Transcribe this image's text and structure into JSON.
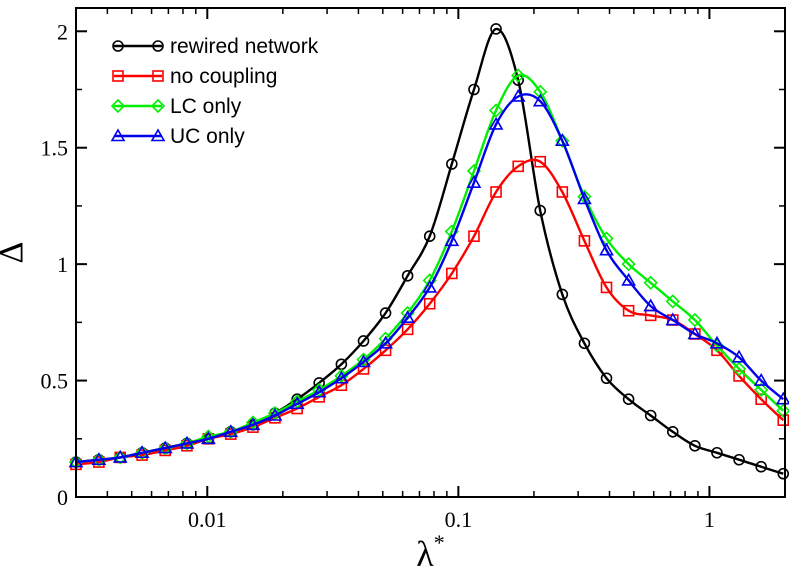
{
  "chart_data": {
    "type": "line",
    "title": "",
    "xlabel": "λ",
    "xlabel_superscript": "*",
    "ylabel": "Δ",
    "xscale": "log",
    "xlim": [
      0.003,
      2.0
    ],
    "ylim": [
      0,
      2.1
    ],
    "xticks": [
      {
        "value": 0.01,
        "label": "0.01"
      },
      {
        "value": 0.1,
        "label": "0.1"
      },
      {
        "value": 1,
        "label": "1"
      }
    ],
    "yticks": [
      {
        "value": 0,
        "label": "0"
      },
      {
        "value": 0.5,
        "label": "0.5"
      },
      {
        "value": 1,
        "label": "1"
      },
      {
        "value": 1.5,
        "label": "1.5"
      },
      {
        "value": 2,
        "label": "2"
      }
    ],
    "grid": false,
    "legend_position": "top-left",
    "series": [
      {
        "name": "rewired network",
        "color": "#000000",
        "marker": "circle",
        "x": [
          0.003,
          0.0037,
          0.0045,
          0.0055,
          0.0068,
          0.0083,
          0.0101,
          0.0124,
          0.0152,
          0.0186,
          0.0228,
          0.0279,
          0.0342,
          0.0419,
          0.0513,
          0.0628,
          0.0769,
          0.0942,
          0.1154,
          0.1413,
          0.1731,
          0.2119,
          0.2595,
          0.3178,
          0.3892,
          0.4766,
          0.5836,
          0.7147,
          0.8752,
          1.0718,
          1.3125,
          1.6072,
          1.9682
        ],
        "values": [
          0.15,
          0.16,
          0.17,
          0.19,
          0.21,
          0.23,
          0.25,
          0.28,
          0.31,
          0.36,
          0.42,
          0.49,
          0.57,
          0.67,
          0.79,
          0.95,
          1.12,
          1.43,
          1.75,
          2.01,
          1.79,
          1.23,
          0.87,
          0.66,
          0.51,
          0.42,
          0.35,
          0.28,
          0.22,
          0.19,
          0.16,
          0.13,
          0.1
        ]
      },
      {
        "name": "no coupling",
        "color": "#ff0000",
        "marker": "square",
        "x": [
          0.003,
          0.0037,
          0.0045,
          0.0055,
          0.0068,
          0.0083,
          0.0101,
          0.0124,
          0.0152,
          0.0186,
          0.0228,
          0.0279,
          0.0342,
          0.0419,
          0.0513,
          0.0628,
          0.0769,
          0.0942,
          0.1154,
          0.1413,
          0.1731,
          0.2119,
          0.2595,
          0.3178,
          0.3892,
          0.4766,
          0.5836,
          0.7147,
          0.8752,
          1.0718,
          1.3125,
          1.6072,
          1.9682
        ],
        "values": [
          0.14,
          0.15,
          0.17,
          0.18,
          0.2,
          0.22,
          0.25,
          0.27,
          0.3,
          0.34,
          0.38,
          0.43,
          0.48,
          0.55,
          0.63,
          0.72,
          0.83,
          0.96,
          1.12,
          1.31,
          1.42,
          1.44,
          1.31,
          1.1,
          0.9,
          0.8,
          0.78,
          0.76,
          0.7,
          0.63,
          0.52,
          0.42,
          0.33
        ]
      },
      {
        "name": "LC only",
        "color": "#00ee00",
        "marker": "diamond",
        "x": [
          0.003,
          0.0037,
          0.0045,
          0.0055,
          0.0068,
          0.0083,
          0.0101,
          0.0124,
          0.0152,
          0.0186,
          0.0228,
          0.0279,
          0.0342,
          0.0419,
          0.0513,
          0.0628,
          0.0769,
          0.0942,
          0.1154,
          0.1413,
          0.1731,
          0.2119,
          0.2595,
          0.3178,
          0.3892,
          0.4766,
          0.5836,
          0.7147,
          0.8752,
          1.0718,
          1.3125,
          1.6072,
          1.9682
        ],
        "values": [
          0.15,
          0.16,
          0.17,
          0.19,
          0.21,
          0.23,
          0.26,
          0.28,
          0.32,
          0.36,
          0.41,
          0.46,
          0.52,
          0.59,
          0.68,
          0.79,
          0.93,
          1.14,
          1.4,
          1.66,
          1.81,
          1.74,
          1.53,
          1.29,
          1.11,
          1.0,
          0.92,
          0.84,
          0.76,
          0.65,
          0.55,
          0.46,
          0.37
        ]
      },
      {
        "name": "UC only",
        "color": "#0000ee",
        "marker": "triangle",
        "x": [
          0.003,
          0.0037,
          0.0045,
          0.0055,
          0.0068,
          0.0083,
          0.0101,
          0.0124,
          0.0152,
          0.0186,
          0.0228,
          0.0279,
          0.0342,
          0.0419,
          0.0513,
          0.0628,
          0.0769,
          0.0942,
          0.1154,
          0.1413,
          0.1731,
          0.2119,
          0.2595,
          0.3178,
          0.3892,
          0.4766,
          0.5836,
          0.7147,
          0.8752,
          1.0718,
          1.3125,
          1.6072,
          1.9682
        ],
        "values": [
          0.15,
          0.16,
          0.17,
          0.19,
          0.21,
          0.23,
          0.25,
          0.28,
          0.31,
          0.35,
          0.4,
          0.45,
          0.51,
          0.58,
          0.66,
          0.77,
          0.9,
          1.1,
          1.35,
          1.6,
          1.72,
          1.7,
          1.53,
          1.28,
          1.06,
          0.93,
          0.82,
          0.76,
          0.7,
          0.66,
          0.6,
          0.5,
          0.42
        ]
      }
    ]
  }
}
